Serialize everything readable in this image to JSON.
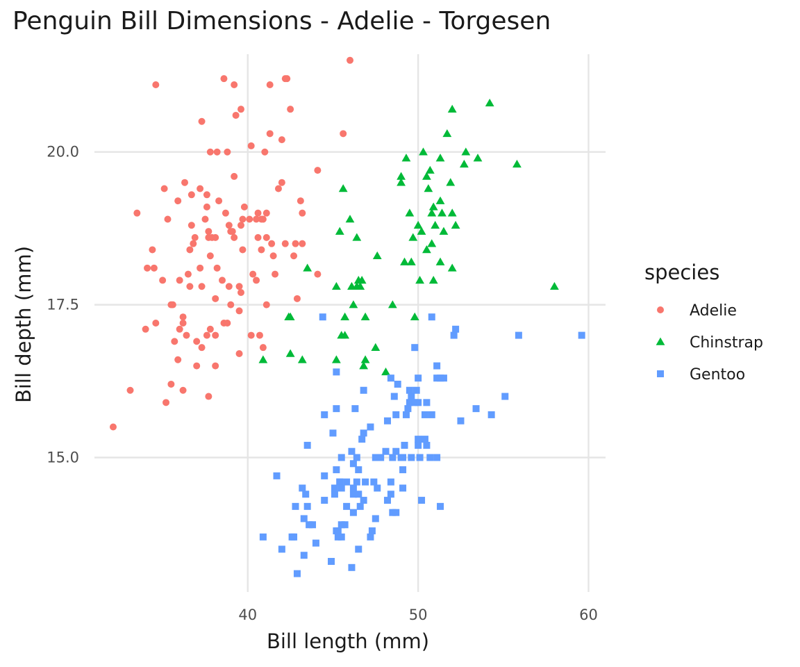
{
  "chart_data": {
    "type": "scatter",
    "title": "Penguin Bill Dimensions - Adelie - Torgesen",
    "xlabel": "Bill length (mm)",
    "ylabel": "Bill depth (mm)",
    "xlim": [
      31,
      61
    ],
    "ylim": [
      12.8,
      21.6
    ],
    "xticks": [
      40,
      50,
      60
    ],
    "xtick_labels": [
      "40",
      "50",
      "60"
    ],
    "yticks": [
      15.0,
      17.5,
      20.0
    ],
    "ytick_labels": [
      "15.0",
      "17.5",
      "20.0"
    ],
    "grid": true,
    "legend": {
      "title": "species",
      "position": "right"
    },
    "series": [
      {
        "name": "Adelie",
        "color": "#F8766D",
        "marker": "circle",
        "points": [
          [
            32.1,
            15.5
          ],
          [
            33.1,
            16.1
          ],
          [
            33.5,
            19.0
          ],
          [
            34.0,
            17.1
          ],
          [
            34.1,
            18.1
          ],
          [
            34.4,
            18.4
          ],
          [
            34.5,
            18.1
          ],
          [
            34.6,
            21.1
          ],
          [
            34.6,
            17.2
          ],
          [
            35.0,
            17.9
          ],
          [
            35.1,
            19.4
          ],
          [
            35.2,
            15.9
          ],
          [
            35.3,
            18.9
          ],
          [
            35.5,
            17.5
          ],
          [
            35.5,
            16.2
          ],
          [
            35.6,
            17.5
          ],
          [
            35.7,
            16.9
          ],
          [
            35.9,
            16.6
          ],
          [
            35.9,
            19.2
          ],
          [
            36.0,
            17.9
          ],
          [
            36.0,
            17.1
          ],
          [
            36.2,
            16.1
          ],
          [
            36.2,
            17.3
          ],
          [
            36.2,
            17.2
          ],
          [
            36.3,
            19.5
          ],
          [
            36.4,
            17.0
          ],
          [
            36.5,
            18.0
          ],
          [
            36.6,
            17.8
          ],
          [
            36.6,
            18.4
          ],
          [
            36.7,
            18.8
          ],
          [
            36.7,
            19.3
          ],
          [
            36.8,
            18.5
          ],
          [
            36.9,
            18.6
          ],
          [
            37.0,
            16.9
          ],
          [
            37.0,
            16.5
          ],
          [
            37.2,
            18.1
          ],
          [
            37.2,
            19.4
          ],
          [
            37.3,
            20.5
          ],
          [
            37.3,
            17.8
          ],
          [
            37.3,
            16.8
          ],
          [
            37.5,
            18.9
          ],
          [
            37.6,
            17.0
          ],
          [
            37.6,
            19.3
          ],
          [
            37.6,
            19.1
          ],
          [
            37.7,
            18.7
          ],
          [
            37.7,
            16.0
          ],
          [
            37.7,
            18.6
          ],
          [
            37.8,
            17.1
          ],
          [
            37.8,
            18.3
          ],
          [
            37.8,
            20.0
          ],
          [
            37.9,
            18.6
          ],
          [
            38.1,
            18.6
          ],
          [
            38.1,
            16.5
          ],
          [
            38.1,
            17.6
          ],
          [
            38.1,
            17.0
          ],
          [
            38.2,
            18.1
          ],
          [
            38.2,
            20.0
          ],
          [
            38.3,
            19.2
          ],
          [
            38.5,
            17.9
          ],
          [
            38.6,
            21.2
          ],
          [
            38.6,
            17.2
          ],
          [
            38.7,
            19.0
          ],
          [
            38.8,
            17.2
          ],
          [
            38.8,
            20.0
          ],
          [
            38.9,
            17.8
          ],
          [
            38.9,
            18.8
          ],
          [
            39.0,
            17.5
          ],
          [
            39.0,
            18.7
          ],
          [
            39.1,
            18.7
          ],
          [
            39.2,
            19.6
          ],
          [
            39.2,
            18.6
          ],
          [
            39.2,
            21.1
          ],
          [
            39.3,
            20.6
          ],
          [
            39.5,
            17.4
          ],
          [
            39.5,
            16.7
          ],
          [
            39.5,
            17.8
          ],
          [
            39.6,
            17.7
          ],
          [
            39.6,
            18.8
          ],
          [
            39.6,
            20.7
          ],
          [
            39.7,
            18.4
          ],
          [
            39.7,
            18.9
          ],
          [
            39.8,
            19.1
          ],
          [
            40.1,
            18.9
          ],
          [
            40.2,
            17.0
          ],
          [
            40.2,
            20.1
          ],
          [
            40.3,
            18.0
          ],
          [
            40.5,
            17.9
          ],
          [
            40.5,
            18.9
          ],
          [
            40.6,
            18.6
          ],
          [
            40.6,
            19.0
          ],
          [
            40.7,
            17.0
          ],
          [
            40.8,
            18.4
          ],
          [
            40.8,
            18.9
          ],
          [
            40.9,
            16.8
          ],
          [
            40.9,
            18.9
          ],
          [
            41.0,
            20.0
          ],
          [
            41.1,
            18.6
          ],
          [
            41.1,
            19.0
          ],
          [
            41.1,
            17.5
          ],
          [
            41.3,
            20.3
          ],
          [
            41.3,
            21.1
          ],
          [
            41.4,
            18.5
          ],
          [
            41.5,
            18.3
          ],
          [
            41.6,
            18.0
          ],
          [
            41.8,
            19.4
          ],
          [
            42.0,
            20.2
          ],
          [
            42.0,
            19.5
          ],
          [
            42.2,
            18.5
          ],
          [
            42.2,
            21.2
          ],
          [
            42.3,
            21.2
          ],
          [
            42.5,
            20.7
          ],
          [
            42.7,
            18.3
          ],
          [
            42.8,
            18.5
          ],
          [
            42.9,
            17.6
          ],
          [
            43.1,
            19.2
          ],
          [
            43.2,
            18.5
          ],
          [
            43.2,
            19.0
          ],
          [
            44.1,
            19.7
          ],
          [
            44.1,
            18.0
          ],
          [
            45.6,
            20.3
          ],
          [
            46.0,
            21.5
          ]
        ]
      },
      {
        "name": "Chinstrap",
        "color": "#00BA38",
        "marker": "triangle",
        "points": [
          [
            40.9,
            16.6
          ],
          [
            42.4,
            17.3
          ],
          [
            42.5,
            16.7
          ],
          [
            42.5,
            17.3
          ],
          [
            43.2,
            16.6
          ],
          [
            43.5,
            18.1
          ],
          [
            45.2,
            17.8
          ],
          [
            45.2,
            16.6
          ],
          [
            45.4,
            18.7
          ],
          [
            45.5,
            17.0
          ],
          [
            45.6,
            19.4
          ],
          [
            45.7,
            17.0
          ],
          [
            45.7,
            17.3
          ],
          [
            46.0,
            18.9
          ],
          [
            46.1,
            17.8
          ],
          [
            46.2,
            17.5
          ],
          [
            46.4,
            18.6
          ],
          [
            46.4,
            17.8
          ],
          [
            46.5,
            17.9
          ],
          [
            46.6,
            17.8
          ],
          [
            46.7,
            17.9
          ],
          [
            46.8,
            16.5
          ],
          [
            46.9,
            16.6
          ],
          [
            46.9,
            17.3
          ],
          [
            47.5,
            16.8
          ],
          [
            47.6,
            18.3
          ],
          [
            48.1,
            16.4
          ],
          [
            48.5,
            17.5
          ],
          [
            49.0,
            19.5
          ],
          [
            49.0,
            19.6
          ],
          [
            49.2,
            18.2
          ],
          [
            49.3,
            19.9
          ],
          [
            49.5,
            19.0
          ],
          [
            49.6,
            18.2
          ],
          [
            49.7,
            18.6
          ],
          [
            49.8,
            17.3
          ],
          [
            50.0,
            18.8
          ],
          [
            50.1,
            17.9
          ],
          [
            50.2,
            18.7
          ],
          [
            50.3,
            20.0
          ],
          [
            50.5,
            18.4
          ],
          [
            50.5,
            19.6
          ],
          [
            50.6,
            19.4
          ],
          [
            50.7,
            19.7
          ],
          [
            50.8,
            19.0
          ],
          [
            50.8,
            18.5
          ],
          [
            50.9,
            17.9
          ],
          [
            50.9,
            19.1
          ],
          [
            51.0,
            18.8
          ],
          [
            51.3,
            18.2
          ],
          [
            51.3,
            19.2
          ],
          [
            51.3,
            19.9
          ],
          [
            51.4,
            19.0
          ],
          [
            51.5,
            18.7
          ],
          [
            51.7,
            20.3
          ],
          [
            51.9,
            19.5
          ],
          [
            52.0,
            18.1
          ],
          [
            52.0,
            19.0
          ],
          [
            52.0,
            20.7
          ],
          [
            52.2,
            18.8
          ],
          [
            52.7,
            19.8
          ],
          [
            52.8,
            20.0
          ],
          [
            53.5,
            19.9
          ],
          [
            54.2,
            20.8
          ],
          [
            55.8,
            19.8
          ],
          [
            58.0,
            17.8
          ]
        ]
      },
      {
        "name": "Gentoo",
        "color": "#619CFF",
        "marker": "square",
        "points": [
          [
            40.9,
            13.7
          ],
          [
            41.7,
            14.7
          ],
          [
            42.0,
            13.5
          ],
          [
            42.6,
            13.7
          ],
          [
            42.7,
            13.7
          ],
          [
            42.8,
            14.2
          ],
          [
            42.9,
            13.1
          ],
          [
            43.2,
            14.5
          ],
          [
            43.3,
            13.4
          ],
          [
            43.3,
            14.0
          ],
          [
            43.4,
            14.4
          ],
          [
            43.5,
            14.2
          ],
          [
            43.5,
            15.2
          ],
          [
            43.6,
            13.9
          ],
          [
            43.8,
            13.9
          ],
          [
            44.0,
            13.6
          ],
          [
            44.4,
            17.3
          ],
          [
            44.5,
            15.7
          ],
          [
            44.5,
            14.3
          ],
          [
            44.5,
            14.7
          ],
          [
            44.9,
            13.3
          ],
          [
            45.0,
            15.4
          ],
          [
            45.1,
            14.5
          ],
          [
            45.1,
            14.4
          ],
          [
            45.2,
            13.8
          ],
          [
            45.2,
            14.8
          ],
          [
            45.2,
            15.8
          ],
          [
            45.2,
            16.4
          ],
          [
            45.3,
            13.7
          ],
          [
            45.3,
            13.8
          ],
          [
            45.4,
            14.6
          ],
          [
            45.4,
            14.6
          ],
          [
            45.5,
            13.7
          ],
          [
            45.5,
            13.9
          ],
          [
            45.5,
            14.5
          ],
          [
            45.5,
            15.0
          ],
          [
            45.7,
            13.9
          ],
          [
            45.8,
            14.2
          ],
          [
            45.8,
            14.6
          ],
          [
            46.1,
            13.2
          ],
          [
            46.1,
            15.1
          ],
          [
            46.2,
            14.1
          ],
          [
            46.2,
            14.4
          ],
          [
            46.2,
            14.5
          ],
          [
            46.2,
            14.9
          ],
          [
            46.3,
            15.8
          ],
          [
            46.4,
            14.6
          ],
          [
            46.4,
            15.0
          ],
          [
            46.5,
            13.5
          ],
          [
            46.5,
            14.4
          ],
          [
            46.5,
            14.8
          ],
          [
            46.6,
            14.2
          ],
          [
            46.7,
            15.3
          ],
          [
            46.8,
            14.3
          ],
          [
            46.8,
            15.4
          ],
          [
            46.8,
            16.1
          ],
          [
            46.9,
            14.6
          ],
          [
            47.2,
            13.7
          ],
          [
            47.2,
            15.5
          ],
          [
            47.3,
            13.8
          ],
          [
            47.4,
            14.6
          ],
          [
            47.5,
            14.0
          ],
          [
            47.5,
            15.0
          ],
          [
            47.6,
            14.5
          ],
          [
            47.7,
            15.0
          ],
          [
            47.8,
            15.0
          ],
          [
            48.1,
            15.1
          ],
          [
            48.2,
            14.3
          ],
          [
            48.2,
            15.6
          ],
          [
            48.4,
            14.4
          ],
          [
            48.4,
            14.6
          ],
          [
            48.4,
            16.3
          ],
          [
            48.5,
            14.1
          ],
          [
            48.5,
            15.0
          ],
          [
            48.6,
            16.0
          ],
          [
            48.7,
            14.1
          ],
          [
            48.7,
            15.1
          ],
          [
            48.7,
            15.7
          ],
          [
            48.8,
            16.2
          ],
          [
            49.0,
            15.0
          ],
          [
            49.1,
            14.5
          ],
          [
            49.1,
            14.8
          ],
          [
            49.1,
            15.0
          ],
          [
            49.2,
            15.2
          ],
          [
            49.3,
            15.7
          ],
          [
            49.4,
            15.8
          ],
          [
            49.5,
            15.9
          ],
          [
            49.5,
            16.1
          ],
          [
            49.6,
            15.0
          ],
          [
            49.6,
            16.0
          ],
          [
            49.8,
            15.9
          ],
          [
            49.8,
            16.8
          ],
          [
            49.9,
            16.1
          ],
          [
            50.0,
            15.2
          ],
          [
            50.0,
            15.3
          ],
          [
            50.0,
            15.9
          ],
          [
            50.0,
            16.3
          ],
          [
            50.1,
            15.0
          ],
          [
            50.2,
            14.3
          ],
          [
            50.4,
            15.3
          ],
          [
            50.4,
            15.7
          ],
          [
            50.5,
            15.2
          ],
          [
            50.5,
            15.9
          ],
          [
            50.7,
            15.0
          ],
          [
            50.8,
            15.7
          ],
          [
            50.8,
            17.3
          ],
          [
            51.1,
            15.0
          ],
          [
            51.1,
            16.3
          ],
          [
            51.1,
            16.5
          ],
          [
            51.3,
            14.2
          ],
          [
            51.3,
            16.3
          ],
          [
            51.5,
            16.3
          ],
          [
            52.1,
            17.0
          ],
          [
            52.2,
            17.1
          ],
          [
            52.5,
            15.6
          ],
          [
            53.4,
            15.8
          ],
          [
            54.3,
            15.7
          ],
          [
            55.1,
            16.0
          ],
          [
            55.9,
            17.0
          ],
          [
            59.6,
            17.0
          ]
        ]
      }
    ]
  }
}
